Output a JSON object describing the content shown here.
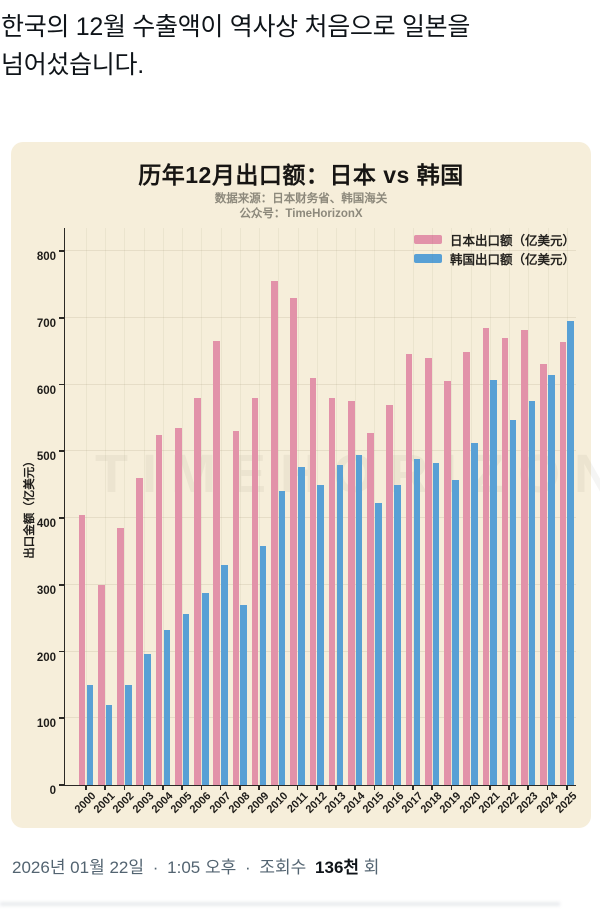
{
  "post": {
    "headline_line1": "한국의 12월 수출액이 역사상 처음으로 일본을",
    "headline_line2": "넘어섰습니다.",
    "meta": {
      "date": "2026년 01월 22일",
      "separator": "·",
      "time": "1:05 오후",
      "views_label": "조회수",
      "views_value": "136천",
      "views_suffix": "회"
    }
  },
  "chart_data": {
    "type": "bar",
    "title": "历年12月出口额：日本 vs 韩国",
    "subtitle_source": "数据来源：日本财务省、韩国海关",
    "subtitle_account": "公众号：TimeHorizonX",
    "ylabel": "出口金额（亿美元）",
    "watermark": "TIMEHORIZON",
    "background": "#f6eeda",
    "grid": true,
    "legend_position": "top-right",
    "ylim": [
      0,
      836
    ],
    "yticks": [
      0,
      100,
      200,
      300,
      400,
      500,
      600,
      700,
      800
    ],
    "categories": [
      "2000",
      "2001",
      "2002",
      "2003",
      "2004",
      "2005",
      "2006",
      "2007",
      "2008",
      "2009",
      "2010",
      "2011",
      "2012",
      "2013",
      "2014",
      "2015",
      "2016",
      "2017",
      "2018",
      "2019",
      "2020",
      "2021",
      "2022",
      "2023",
      "2024",
      "2025"
    ],
    "series": [
      {
        "name": "日本出口额（亿美元）",
        "color": "#e292a9",
        "values": [
          405,
          300,
          385,
          460,
          525,
          535,
          580,
          665,
          530,
          580,
          755,
          730,
          610,
          580,
          575,
          527,
          570,
          645,
          640,
          605,
          648,
          685,
          670,
          682,
          630,
          663
        ]
      },
      {
        "name": "韩国出口额（亿美元）",
        "color": "#58a0d5",
        "values": [
          150,
          120,
          150,
          197,
          232,
          256,
          287,
          330,
          270,
          358,
          440,
          476,
          449,
          480,
          494,
          422,
          450,
          489,
          482,
          457,
          512,
          607,
          547,
          576,
          614,
          695
        ]
      }
    ]
  }
}
